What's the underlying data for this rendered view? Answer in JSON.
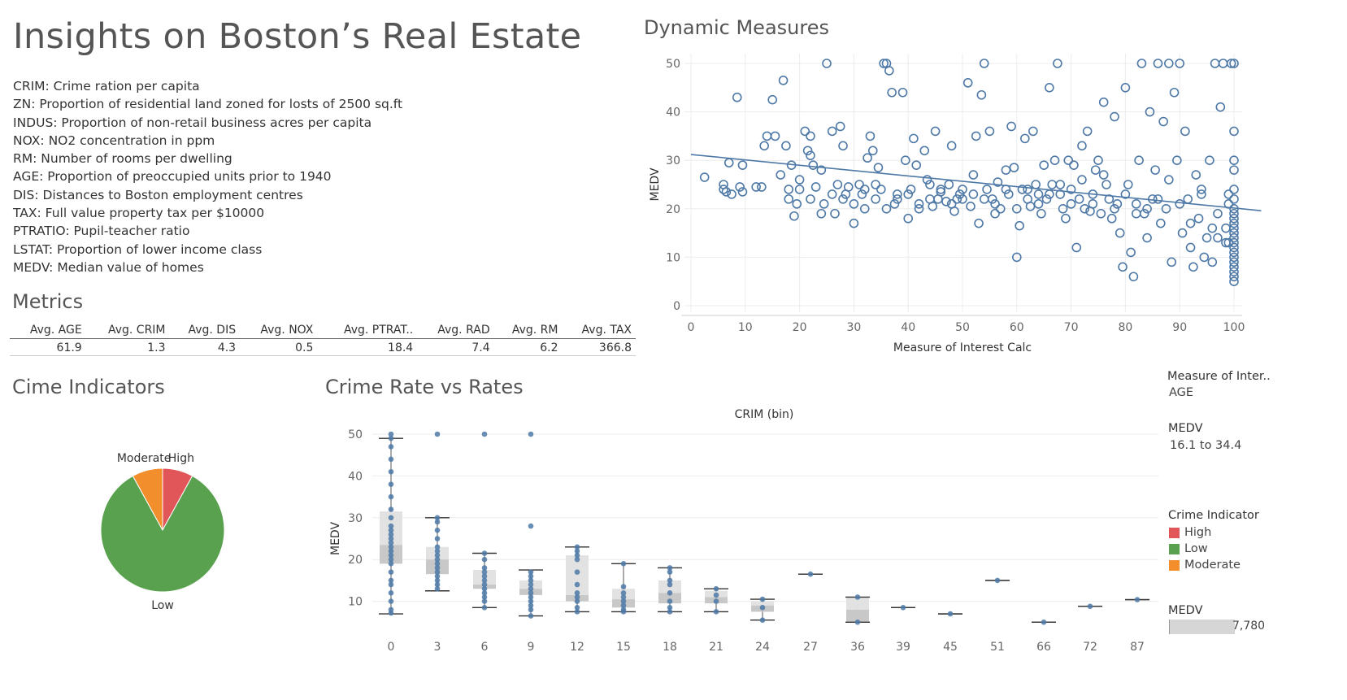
{
  "title": "Insights on Boston’s Real Estate",
  "definitions": [
    "CRIM: Crime ration per capita",
    "ZN: Proportion of residential land zoned for losts of 2500 sq.ft",
    "INDUS: Proportion of non-retail business acres per capita",
    "NOX: NO2 concentration in ppm",
    "RM: Number of rooms per dwelling",
    "AGE: Proportion of preoccupied units prior to 1940",
    "DIS: Distances to Boston employment centres",
    "TAX: Full value property tax per $10000",
    "PTRATIO: Pupil-teacher ratio",
    "LSTAT: Proportion of lower income class",
    "MEDV: Median value of homes"
  ],
  "metrics": {
    "title": "Metrics",
    "headers": [
      "Avg. AGE",
      "Avg. CRIM",
      "Avg. DIS",
      "Avg. NOX",
      "Avg. PTRAT..",
      "Avg. RAD",
      "Avg. RM",
      "Avg. TAX"
    ],
    "values": [
      "61.9",
      "1.3",
      "4.3",
      "0.5",
      "18.4",
      "7.4",
      "6.2",
      "366.8"
    ]
  },
  "side_panel": {
    "moi_label": "Measure of Inter..",
    "moi_value": "AGE",
    "medv_label": "MEDV",
    "medv_range": "16.1 to 34.4",
    "ci_title": "Crime Indicator",
    "ci_items": [
      {
        "label": "High",
        "color": "#e15759"
      },
      {
        "label": "Low",
        "color": "#59a14f"
      },
      {
        "label": "Moderate",
        "color": "#f28e2b"
      }
    ],
    "medv2_label": "MEDV",
    "medv2_value": "7,780"
  },
  "colors": {
    "point": "#4e79a7",
    "box_light": "#e2e2e2",
    "box_dark": "#c8c8c8"
  },
  "chart_data": [
    {
      "type": "scatter",
      "title": "Dynamic Measures",
      "xlabel": "Measure of Interest Calc",
      "ylabel": "MEDV",
      "xlim": [
        0,
        100
      ],
      "ylim": [
        0,
        50
      ],
      "xticks": [
        0,
        10,
        20,
        30,
        40,
        50,
        60,
        70,
        80,
        90,
        100
      ],
      "yticks": [
        0,
        10,
        20,
        30,
        40,
        50
      ],
      "trend": {
        "x": [
          0,
          105
        ],
        "y": [
          31.2,
          19.6
        ]
      },
      "points": [
        [
          2.5,
          26.5
        ],
        [
          6,
          24
        ],
        [
          6,
          25
        ],
        [
          6.5,
          23.5
        ],
        [
          7,
          29.5
        ],
        [
          7.5,
          23
        ],
        [
          8.5,
          43
        ],
        [
          9,
          24.5
        ],
        [
          9.5,
          29
        ],
        [
          9.5,
          23.5
        ],
        [
          12,
          24.5
        ],
        [
          13,
          24.5
        ],
        [
          13.5,
          33
        ],
        [
          14,
          35
        ],
        [
          15,
          42.5
        ],
        [
          15.5,
          35
        ],
        [
          16.5,
          27
        ],
        [
          17,
          46.5
        ],
        [
          17.5,
          33
        ],
        [
          18,
          24
        ],
        [
          18.5,
          29
        ],
        [
          19,
          18.5
        ],
        [
          19.5,
          21
        ],
        [
          20,
          26
        ],
        [
          21,
          36
        ],
        [
          21.5,
          32
        ],
        [
          22,
          35
        ],
        [
          22.5,
          29
        ],
        [
          22,
          31
        ],
        [
          23,
          24.5
        ],
        [
          24,
          28
        ],
        [
          24.5,
          21
        ],
        [
          25,
          50
        ],
        [
          26,
          36
        ],
        [
          26.5,
          19
        ],
        [
          27,
          25
        ],
        [
          27.5,
          37
        ],
        [
          28,
          33
        ],
        [
          28.5,
          23
        ],
        [
          29,
          24.5
        ],
        [
          30,
          17
        ],
        [
          31,
          25
        ],
        [
          31.5,
          23
        ],
        [
          32,
          20
        ],
        [
          32.5,
          30.5
        ],
        [
          33,
          35
        ],
        [
          33.5,
          32
        ],
        [
          34,
          22
        ],
        [
          34.5,
          28.5
        ],
        [
          35,
          24
        ],
        [
          35.5,
          50
        ],
        [
          36,
          50
        ],
        [
          36.5,
          48.5
        ],
        [
          37,
          44
        ],
        [
          37.5,
          21
        ],
        [
          38,
          23
        ],
        [
          39,
          44
        ],
        [
          39.5,
          30
        ],
        [
          40,
          18
        ],
        [
          40.5,
          24
        ],
        [
          41,
          34.5
        ],
        [
          41.5,
          29
        ],
        [
          42,
          20
        ],
        [
          43,
          32
        ],
        [
          43.5,
          26
        ],
        [
          44,
          25
        ],
        [
          44.5,
          20.5
        ],
        [
          45,
          36
        ],
        [
          45.5,
          22
        ],
        [
          46,
          23.5
        ],
        [
          47,
          21.5
        ],
        [
          47.5,
          25
        ],
        [
          48,
          33
        ],
        [
          48.5,
          19.5
        ],
        [
          49,
          22
        ],
        [
          49.5,
          23
        ],
        [
          50,
          24
        ],
        [
          51,
          46
        ],
        [
          51.5,
          20.5
        ],
        [
          52,
          27
        ],
        [
          52.5,
          35
        ],
        [
          53,
          17
        ],
        [
          53.5,
          43.5
        ],
        [
          54,
          50
        ],
        [
          54.5,
          24
        ],
        [
          55,
          36
        ],
        [
          55.5,
          22
        ],
        [
          56,
          19
        ],
        [
          56.5,
          25.5
        ],
        [
          57,
          20
        ],
        [
          58,
          28
        ],
        [
          58.5,
          23
        ],
        [
          59,
          37
        ],
        [
          59.5,
          28.5
        ],
        [
          60,
          10
        ],
        [
          60.5,
          16.5
        ],
        [
          61,
          24
        ],
        [
          61.5,
          34.5
        ],
        [
          62,
          22
        ],
        [
          62.5,
          20.5
        ],
        [
          63,
          36
        ],
        [
          63.5,
          25
        ],
        [
          64,
          23
        ],
        [
          64.5,
          19
        ],
        [
          65,
          29
        ],
        [
          65.5,
          22
        ],
        [
          66,
          45
        ],
        [
          66.5,
          25
        ],
        [
          67,
          30
        ],
        [
          67.5,
          50
        ],
        [
          68,
          23
        ],
        [
          68.5,
          20
        ],
        [
          69,
          18
        ],
        [
          69.5,
          30
        ],
        [
          70,
          24
        ],
        [
          70.5,
          29
        ],
        [
          71,
          12
        ],
        [
          71.5,
          22
        ],
        [
          72,
          33
        ],
        [
          72.5,
          20
        ],
        [
          73,
          36
        ],
        [
          73.5,
          19.5
        ],
        [
          74,
          21
        ],
        [
          74.5,
          28
        ],
        [
          75,
          30
        ],
        [
          75.5,
          19
        ],
        [
          76,
          42
        ],
        [
          76.5,
          25
        ],
        [
          77,
          22
        ],
        [
          77.5,
          18
        ],
        [
          78,
          39
        ],
        [
          78.5,
          21
        ],
        [
          79,
          15
        ],
        [
          79.5,
          8
        ],
        [
          80,
          45
        ],
        [
          80.5,
          25
        ],
        [
          81,
          11
        ],
        [
          81.5,
          6
        ],
        [
          82,
          21
        ],
        [
          82.5,
          30
        ],
        [
          83,
          50
        ],
        [
          83.5,
          19
        ],
        [
          84,
          14
        ],
        [
          84.5,
          40
        ],
        [
          85,
          22
        ],
        [
          85.5,
          28
        ],
        [
          86,
          50
        ],
        [
          86.5,
          17
        ],
        [
          87,
          38
        ],
        [
          87.5,
          20
        ],
        [
          88,
          50
        ],
        [
          88.5,
          9
        ],
        [
          89,
          44
        ],
        [
          89.5,
          30
        ],
        [
          90,
          50
        ],
        [
          90.5,
          15
        ],
        [
          91,
          36
        ],
        [
          91.5,
          22
        ],
        [
          92,
          12
        ],
        [
          92.5,
          8
        ],
        [
          93,
          27
        ],
        [
          93.5,
          18
        ],
        [
          94,
          24
        ],
        [
          94.5,
          10
        ],
        [
          95,
          14
        ],
        [
          95.5,
          30
        ],
        [
          96,
          9
        ],
        [
          96.5,
          50
        ],
        [
          97,
          19
        ],
        [
          97.5,
          41
        ],
        [
          98,
          50
        ],
        [
          98.5,
          13
        ],
        [
          99,
          21
        ],
        [
          99.5,
          50
        ],
        [
          100,
          50
        ],
        [
          100,
          36
        ],
        [
          100,
          30
        ],
        [
          100,
          28
        ],
        [
          100,
          24
        ],
        [
          100,
          22
        ],
        [
          100,
          20
        ],
        [
          100,
          19
        ],
        [
          100,
          18
        ],
        [
          100,
          17
        ],
        [
          100,
          16
        ],
        [
          100,
          15
        ],
        [
          100,
          14
        ],
        [
          100,
          13
        ],
        [
          100,
          12
        ],
        [
          100,
          11
        ],
        [
          100,
          10
        ],
        [
          100,
          9
        ],
        [
          100,
          8
        ],
        [
          100,
          7
        ],
        [
          100,
          6
        ],
        [
          100,
          5
        ],
        [
          99,
          23
        ],
        [
          98.5,
          16
        ],
        [
          99,
          13
        ],
        [
          97,
          14
        ],
        [
          96,
          16
        ],
        [
          94,
          23
        ],
        [
          92,
          17
        ],
        [
          90,
          21
        ],
        [
          88,
          26
        ],
        [
          86,
          22
        ],
        [
          84,
          20
        ],
        [
          82,
          19
        ],
        [
          80,
          23
        ],
        [
          78,
          20
        ],
        [
          76,
          27
        ],
        [
          74,
          23
        ],
        [
          72,
          26
        ],
        [
          70,
          21
        ],
        [
          68,
          25
        ],
        [
          66,
          23
        ],
        [
          64,
          21
        ],
        [
          62,
          24
        ],
        [
          60,
          20
        ],
        [
          58,
          24
        ],
        [
          56,
          21
        ],
        [
          54,
          22
        ],
        [
          52,
          23
        ],
        [
          50,
          22
        ],
        [
          48,
          21
        ],
        [
          46,
          24
        ],
        [
          44,
          22
        ],
        [
          42,
          21
        ],
        [
          40,
          23
        ],
        [
          38,
          22
        ],
        [
          36,
          20
        ],
        [
          34,
          25
        ],
        [
          32,
          24
        ],
        [
          30,
          21
        ],
        [
          28,
          22
        ],
        [
          26,
          23
        ],
        [
          24,
          19
        ],
        [
          22,
          22
        ],
        [
          20,
          24
        ],
        [
          18,
          22
        ]
      ]
    },
    {
      "type": "pie",
      "title": "Cime Indicators",
      "slices": [
        {
          "label": "High",
          "value": 8,
          "color": "#e15759"
        },
        {
          "label": "Low",
          "value": 84,
          "color": "#59a14f"
        },
        {
          "label": "Moderate",
          "value": 8,
          "color": "#f28e2b"
        }
      ]
    },
    {
      "type": "box",
      "title": "Crime Rate vs Rates",
      "xlabel": "CRIM (bin)",
      "ylabel": "MEDV",
      "ylim": [
        0,
        50
      ],
      "yticks": [
        10,
        20,
        30,
        40,
        50
      ],
      "categories": [
        "0",
        "3",
        "6",
        "9",
        "12",
        "15",
        "18",
        "21",
        "24",
        "27",
        "36",
        "39",
        "45",
        "51",
        "66",
        "72",
        "87"
      ],
      "boxes": [
        {
          "min": 7,
          "q1": 19,
          "median": 23.5,
          "q3": 31.5,
          "max": 49,
          "points": [
            7.2,
            8,
            10,
            12,
            14,
            15,
            17,
            19,
            20,
            21,
            22,
            23,
            24,
            25,
            26,
            27,
            28,
            30,
            32,
            35,
            38,
            41,
            44,
            47,
            49,
            50
          ]
        },
        {
          "min": 12.5,
          "q1": 16.5,
          "median": 20,
          "q3": 23,
          "max": 30,
          "points": [
            13,
            14,
            15,
            16,
            17,
            18,
            19,
            20,
            21,
            22,
            23,
            25,
            27,
            29,
            30,
            50
          ]
        },
        {
          "min": 8.5,
          "q1": 13,
          "median": 14,
          "q3": 17.5,
          "max": 21.5,
          "points": [
            8.5,
            10,
            11,
            12,
            13,
            14,
            15,
            16,
            17,
            18,
            20,
            21.5,
            50
          ]
        },
        {
          "min": 6.5,
          "q1": 11.5,
          "median": 13,
          "q3": 15,
          "max": 17.5,
          "points": [
            6.5,
            8,
            9,
            10,
            11,
            12,
            13,
            14,
            15,
            16,
            17,
            28,
            50
          ]
        },
        {
          "min": 7.5,
          "q1": 10,
          "median": 11.5,
          "q3": 21,
          "max": 23,
          "points": [
            7.5,
            8.5,
            10,
            11,
            12,
            14,
            17,
            20,
            21,
            22,
            23
          ]
        },
        {
          "min": 7.5,
          "q1": 8.5,
          "median": 10.5,
          "q3": 13,
          "max": 19,
          "points": [
            7.5,
            8,
            9,
            10,
            11,
            12,
            13.5,
            19
          ]
        },
        {
          "min": 7.5,
          "q1": 9.5,
          "median": 12,
          "q3": 15,
          "max": 18,
          "points": [
            7.5,
            8.5,
            10,
            12,
            14,
            15,
            17,
            18
          ]
        },
        {
          "min": 7.5,
          "q1": 9.5,
          "median": 11,
          "q3": 12.5,
          "max": 13,
          "points": [
            7.5,
            10,
            11.5,
            13
          ]
        },
        {
          "min": 5.5,
          "q1": 7.5,
          "median": 9,
          "q3": 10,
          "max": 10.5,
          "points": [
            5.5,
            8.5,
            10.5
          ]
        },
        {
          "min": 16.5,
          "q1": 16.5,
          "median": 16.5,
          "q3": 16.5,
          "max": 16.5,
          "points": [
            16.5
          ]
        },
        {
          "min": 5,
          "q1": 5,
          "median": 8,
          "q3": 11,
          "max": 11,
          "points": [
            5,
            11
          ]
        },
        {
          "min": 8.5,
          "q1": 8.5,
          "median": 8.5,
          "q3": 8.5,
          "max": 8.5,
          "points": [
            8.5
          ]
        },
        {
          "min": 7,
          "q1": 7,
          "median": 7,
          "q3": 7,
          "max": 7,
          "points": [
            7
          ]
        },
        {
          "min": 15,
          "q1": 15,
          "median": 15,
          "q3": 15,
          "max": 15,
          "points": [
            15
          ]
        },
        {
          "min": 5,
          "q1": 5,
          "median": 5,
          "q3": 5,
          "max": 5,
          "points": [
            5
          ]
        },
        {
          "min": 8.8,
          "q1": 8.8,
          "median": 8.8,
          "q3": 8.8,
          "max": 8.8,
          "points": [
            8.8
          ]
        },
        {
          "min": 10.4,
          "q1": 10.4,
          "median": 10.4,
          "q3": 10.4,
          "max": 10.4,
          "points": [
            10.4
          ]
        }
      ]
    }
  ]
}
